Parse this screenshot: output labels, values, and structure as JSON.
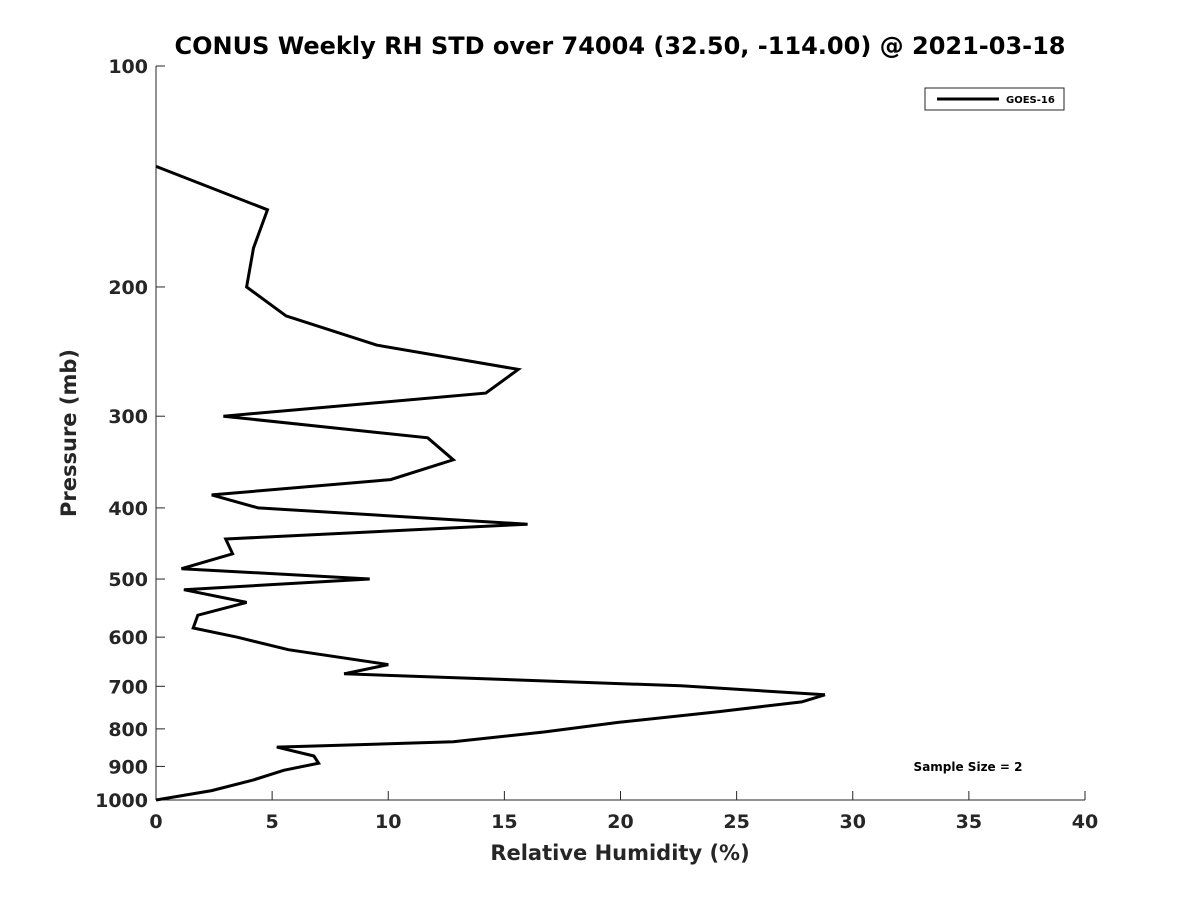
{
  "chart_data": {
    "type": "line",
    "title": "CONUS Weekly RH STD over 74004 (32.50, -114.00) @ 2021-03-18",
    "xlabel": "Relative Humidity (%)",
    "ylabel": "Pressure (mb)",
    "xlim": [
      0,
      40
    ],
    "ylim": [
      100,
      1000
    ],
    "y_scale": "log",
    "y_reversed": true,
    "x_ticks": [
      0,
      5,
      10,
      15,
      20,
      25,
      30,
      35,
      40
    ],
    "x_tick_labels": [
      "0",
      "5",
      "10",
      "15",
      "20",
      "25",
      "30",
      "35",
      "40"
    ],
    "y_ticks": [
      100,
      200,
      300,
      400,
      500,
      600,
      700,
      800,
      900,
      1000
    ],
    "y_tick_labels": [
      "100",
      "200",
      "300",
      "400",
      "500",
      "600",
      "700",
      "800",
      "900",
      "1000"
    ],
    "grid": false,
    "legend_position": "top-right",
    "series": [
      {
        "name": "GOES-16",
        "color": "#000000",
        "points": [
          [
            0.0,
            137
          ],
          [
            4.8,
            157
          ],
          [
            4.2,
            177
          ],
          [
            3.9,
            200
          ],
          [
            5.6,
            219
          ],
          [
            9.5,
            240
          ],
          [
            15.6,
            259
          ],
          [
            14.2,
            279
          ],
          [
            2.9,
            300
          ],
          [
            11.7,
            321
          ],
          [
            12.8,
            344
          ],
          [
            10.1,
            366
          ],
          [
            2.4,
            384
          ],
          [
            4.4,
            400
          ],
          [
            16.0,
            421
          ],
          [
            3.0,
            441
          ],
          [
            3.3,
            462
          ],
          [
            1.1,
            484
          ],
          [
            9.2,
            500
          ],
          [
            1.2,
            517
          ],
          [
            3.9,
            538
          ],
          [
            1.8,
            560
          ],
          [
            1.6,
            583
          ],
          [
            3.5,
            600
          ],
          [
            5.7,
            624
          ],
          [
            10.0,
            654
          ],
          [
            8.1,
            673
          ],
          [
            22.6,
            699
          ],
          [
            28.8,
            719
          ],
          [
            27.8,
            735
          ],
          [
            24.2,
            758
          ],
          [
            19.9,
            784
          ],
          [
            16.7,
            808
          ],
          [
            12.8,
            833
          ],
          [
            5.2,
            847
          ],
          [
            6.8,
            871
          ],
          [
            7.0,
            891
          ],
          [
            5.5,
            911
          ],
          [
            4.2,
            939
          ],
          [
            2.4,
            971
          ],
          [
            0.0,
            1000
          ]
        ]
      }
    ],
    "annotation": "Sample Size = 2"
  }
}
